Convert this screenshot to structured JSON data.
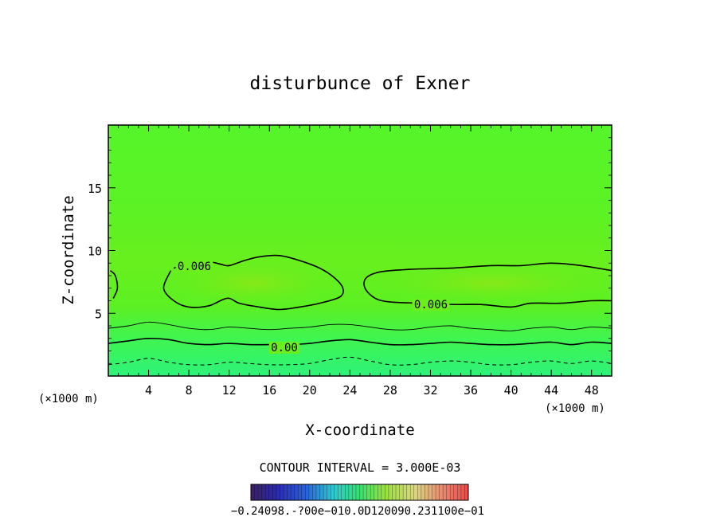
{
  "chart_data": {
    "type": "contour",
    "title": "disturbunce of Exner",
    "xlabel": "X-coordinate",
    "ylabel": "Z-coordinate",
    "x_unit_label": "(×1000 m)",
    "y_unit_label": "(×1000 m)",
    "xlim": [
      0,
      50
    ],
    "ylim": [
      0,
      20
    ],
    "x_ticks": [
      "4",
      "8",
      "12",
      "16",
      "20",
      "24",
      "28",
      "32",
      "36",
      "40",
      "44",
      "48"
    ],
    "y_ticks": [
      "5",
      "10",
      "15"
    ],
    "contour_interval_text": "CONTOUR INTERVAL = 3.000E-03",
    "contours": [
      {
        "level_label": "0.006",
        "points": [
          [
            0.5,
            6.2
          ],
          [
            0.9,
            7.0
          ],
          [
            0.7,
            8.0
          ],
          [
            0.2,
            8.4
          ]
        ]
      },
      {
        "level_label": "0.006",
        "points": [
          [
            6.2,
            8.4
          ],
          [
            5.5,
            7.0
          ],
          [
            6.5,
            6.0
          ],
          [
            8.0,
            5.5
          ],
          [
            10.0,
            5.6
          ],
          [
            11.8,
            6.2
          ],
          [
            13.0,
            5.8
          ],
          [
            15.0,
            5.5
          ],
          [
            17.0,
            5.3
          ],
          [
            19.0,
            5.5
          ],
          [
            21.0,
            5.8
          ],
          [
            23.0,
            6.3
          ],
          [
            23.3,
            7.0
          ],
          [
            22.5,
            7.8
          ],
          [
            21.0,
            8.6
          ],
          [
            19.0,
            9.2
          ],
          [
            17.0,
            9.6
          ],
          [
            15.0,
            9.5
          ],
          [
            13.5,
            9.2
          ],
          [
            12.0,
            8.8
          ],
          [
            11.2,
            8.9
          ],
          [
            10.0,
            9.1
          ],
          [
            8.0,
            9.0
          ],
          [
            6.5,
            8.6
          ]
        ]
      },
      {
        "level_label": "0.006",
        "points": [
          [
            50,
            6.0
          ],
          [
            48,
            6.0
          ],
          [
            45,
            5.8
          ],
          [
            42,
            5.8
          ],
          [
            40,
            5.5
          ],
          [
            37,
            5.7
          ],
          [
            34,
            5.7
          ],
          [
            31,
            5.8
          ],
          [
            28,
            5.9
          ],
          [
            26.5,
            6.2
          ],
          [
            25.5,
            7.0
          ],
          [
            25.6,
            7.8
          ],
          [
            27,
            8.3
          ],
          [
            30,
            8.5
          ],
          [
            34,
            8.6
          ],
          [
            38,
            8.8
          ],
          [
            41,
            8.8
          ],
          [
            44,
            9.0
          ],
          [
            47,
            8.8
          ],
          [
            50,
            8.4
          ]
        ]
      },
      {
        "level_label": "0.00",
        "points": [
          [
            0,
            2.6
          ],
          [
            2,
            2.8
          ],
          [
            4,
            3.0
          ],
          [
            6,
            2.9
          ],
          [
            8,
            2.6
          ],
          [
            10,
            2.5
          ],
          [
            12,
            2.6
          ],
          [
            14,
            2.5
          ],
          [
            16,
            2.5
          ],
          [
            18,
            2.5
          ],
          [
            20,
            2.6
          ],
          [
            22,
            2.8
          ],
          [
            24,
            2.9
          ],
          [
            26,
            2.7
          ],
          [
            28,
            2.5
          ],
          [
            30,
            2.5
          ],
          [
            32,
            2.6
          ],
          [
            34,
            2.7
          ],
          [
            36,
            2.6
          ],
          [
            38,
            2.5
          ],
          [
            40,
            2.5
          ],
          [
            42,
            2.6
          ],
          [
            44,
            2.7
          ],
          [
            46,
            2.5
          ],
          [
            48,
            2.7
          ],
          [
            50,
            2.6
          ]
        ]
      },
      {
        "level_label": "",
        "points": [
          [
            0,
            3.8
          ],
          [
            2,
            4.0
          ],
          [
            4,
            4.3
          ],
          [
            6,
            4.1
          ],
          [
            8,
            3.8
          ],
          [
            10,
            3.7
          ],
          [
            12,
            3.9
          ],
          [
            14,
            3.8
          ],
          [
            16,
            3.7
          ],
          [
            18,
            3.8
          ],
          [
            20,
            3.9
          ],
          [
            22,
            4.1
          ],
          [
            24,
            4.1
          ],
          [
            26,
            3.9
          ],
          [
            28,
            3.7
          ],
          [
            30,
            3.7
          ],
          [
            32,
            3.9
          ],
          [
            34,
            4.0
          ],
          [
            36,
            3.8
          ],
          [
            38,
            3.7
          ],
          [
            40,
            3.6
          ],
          [
            42,
            3.8
          ],
          [
            44,
            3.9
          ],
          [
            46,
            3.7
          ],
          [
            48,
            3.9
          ],
          [
            50,
            3.8
          ]
        ]
      },
      {
        "level_label": "",
        "dashed": true,
        "points": [
          [
            0,
            0.9
          ],
          [
            2,
            1.1
          ],
          [
            4,
            1.4
          ],
          [
            6,
            1.1
          ],
          [
            8,
            0.9
          ],
          [
            10,
            0.9
          ],
          [
            12,
            1.1
          ],
          [
            14,
            1.0
          ],
          [
            16,
            0.9
          ],
          [
            18,
            0.9
          ],
          [
            20,
            1.0
          ],
          [
            22,
            1.3
          ],
          [
            24,
            1.5
          ],
          [
            26,
            1.2
          ],
          [
            28,
            0.9
          ],
          [
            30,
            0.9
          ],
          [
            32,
            1.1
          ],
          [
            34,
            1.2
          ],
          [
            36,
            1.1
          ],
          [
            38,
            0.9
          ],
          [
            40,
            0.9
          ],
          [
            42,
            1.1
          ],
          [
            44,
            1.2
          ],
          [
            46,
            1.0
          ],
          [
            48,
            1.2
          ],
          [
            50,
            1.0
          ]
        ]
      }
    ],
    "colorbar": {
      "tick_labels": [
        "−0.240",
        "0E−1",
        "−0.100",
        "0E−1",
        "0.100",
        "0E−1",
        "0.120",
        "0E−1",
        "0.240",
        "0E−1"
      ],
      "overprinted_text": "−0.24098.‐?00e−010.0D120090.231100e−01"
    },
    "colors": {
      "field_top": "#55f52a",
      "field_upper": "#5cf224",
      "field_mid": "#69ef1e",
      "field_bubble": "#7aec18",
      "field_low": "#40f550",
      "field_bottom": "#2ef27a",
      "contour": "#000000"
    }
  }
}
